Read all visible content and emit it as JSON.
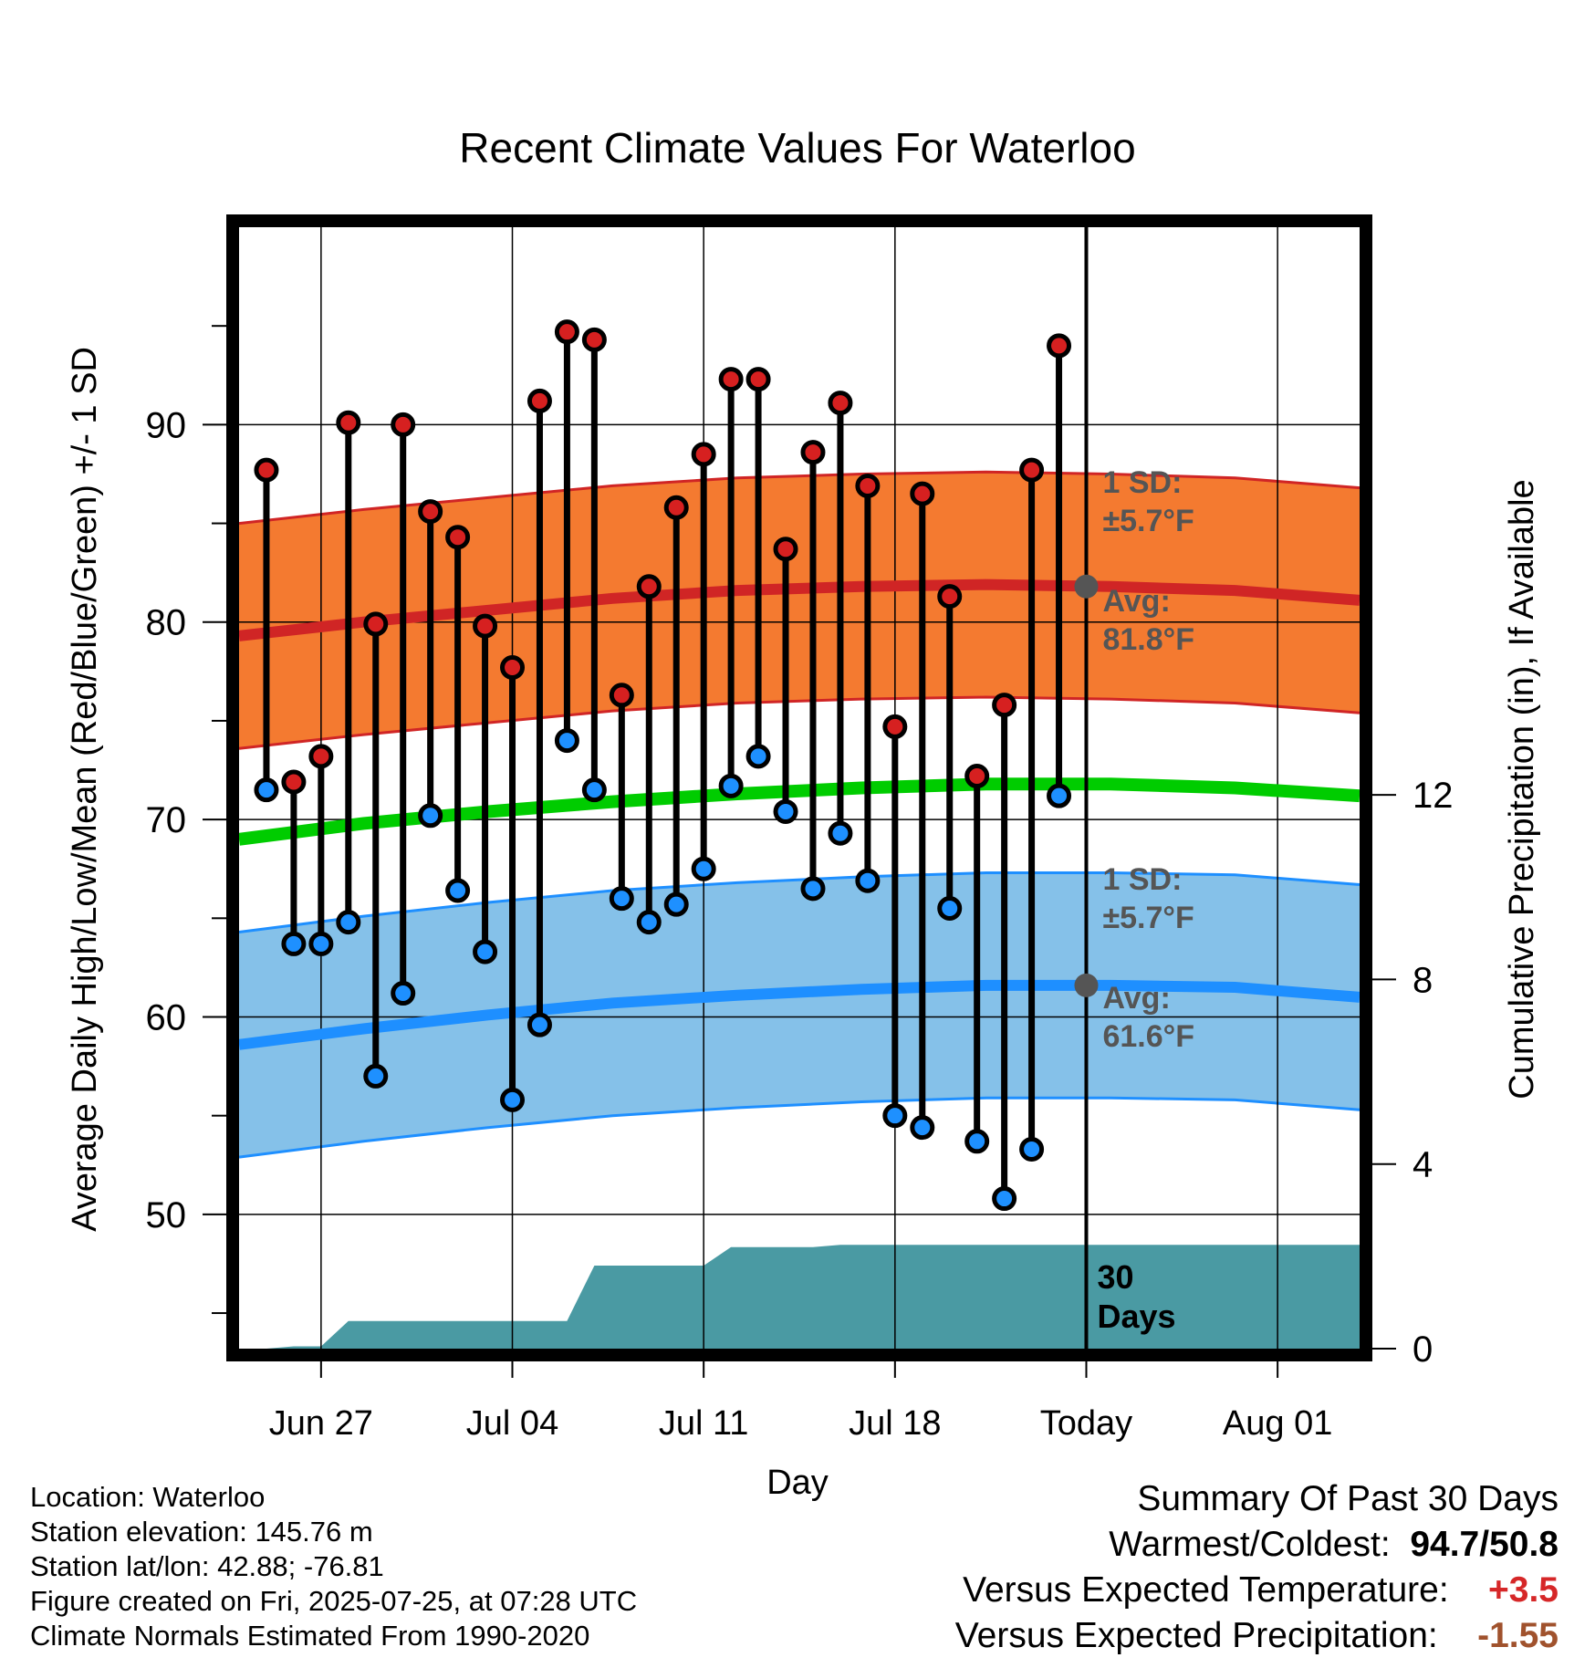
{
  "chart_data": {
    "type": "line",
    "title": "Recent Climate Values For Waterloo",
    "xlabel": "Day",
    "ylabel": "Average Daily High/Low/Mean (Red/Blue/Green) +/- 1 SD",
    "y2label": "Cumulative Precipitation (in), If Available",
    "x_ticks": [
      "Jun 27",
      "Jul 04",
      "Jul 11",
      "Jul 18",
      "Today",
      "Aug 01"
    ],
    "y_ticks": [
      50,
      60,
      70,
      80,
      90
    ],
    "y2_ticks": [
      0,
      4,
      8,
      12
    ],
    "ylim": [
      43.2,
      100
    ],
    "y2lim": [
      0,
      24.3
    ],
    "grid": true,
    "observed_high": [
      87.7,
      71.9,
      73.2,
      90.1,
      79.9,
      90.0,
      85.6,
      84.3,
      79.8,
      77.7,
      91.2,
      94.7,
      94.3,
      76.3,
      81.8,
      85.8,
      88.5,
      92.3,
      92.3,
      83.7,
      88.6,
      91.1,
      86.9,
      74.7,
      86.5,
      81.3,
      72.2,
      75.8,
      87.7,
      94.0
    ],
    "observed_low": [
      71.5,
      63.7,
      63.7,
      64.8,
      57.0,
      61.2,
      70.2,
      66.4,
      63.3,
      55.8,
      59.6,
      74.0,
      71.5,
      66.0,
      64.8,
      65.7,
      67.5,
      71.7,
      73.2,
      70.4,
      66.5,
      69.3,
      66.9,
      55.0,
      54.4,
      65.5,
      53.7,
      50.8,
      53.3,
      71.2
    ],
    "normal_high_avg": [
      79.3,
      80.0,
      80.6,
      81.2,
      81.6,
      81.8,
      81.9,
      81.8,
      81.6,
      81.1
    ],
    "normal_low_avg": [
      58.6,
      59.4,
      60.1,
      60.7,
      61.1,
      61.4,
      61.6,
      61.6,
      61.5,
      61.0
    ],
    "normal_mean": [
      69.0,
      69.8,
      70.4,
      70.9,
      71.3,
      71.6,
      71.8,
      71.8,
      71.6,
      71.2
    ],
    "sd": 5.7,
    "cumulative_precip": [
      0.0,
      0.0,
      0.05,
      0.05,
      0.6,
      0.6,
      0.6,
      0.6,
      0.6,
      0.6,
      0.6,
      0.6,
      0.6,
      1.8,
      1.8,
      1.8,
      1.8,
      1.8,
      2.2,
      2.2,
      2.2,
      2.2,
      2.25,
      2.25,
      2.25,
      2.25,
      2.25,
      2.25,
      2.25,
      2.25,
      2.25,
      2.25
    ],
    "annotations": {
      "high_sd_label": "1 SD:",
      "high_sd_value": "±5.7°F",
      "high_avg_label": "Avg:",
      "high_avg_value": "81.8°F",
      "low_sd_label": "1 SD:",
      "low_sd_value": "±5.7°F",
      "low_avg_label": "Avg:",
      "low_avg_value": "61.6°F",
      "period_label_1": "30",
      "period_label_2": "Days"
    },
    "colors": {
      "high_band": "#f47a30",
      "high_line": "#d02525",
      "low_band": "#85c1e9",
      "low_line": "#1e8fff",
      "mean_line": "#00cc00",
      "precip": "#4a9aa3",
      "high_point": "#d62020",
      "low_point": "#1e90ff",
      "annotation_text": "#555555"
    }
  },
  "info": {
    "location": "Location: Waterloo",
    "elevation": "Station elevation: 145.76 m",
    "latlon": "Station lat/lon: 42.88; -76.81",
    "created": "Figure created on Fri, 2025-07-25, at 07:28 UTC",
    "normals": "Climate Normals Estimated From 1990-2020"
  },
  "summary": {
    "title": "Summary Of Past 30 Days",
    "warmest_label": "Warmest/Coldest:",
    "warmest_value": "94.7/50.8",
    "temp_label": "Versus Expected Temperature:",
    "temp_value": "+3.5",
    "precip_label": "Versus Expected Precipitation:",
    "precip_value": "-1.55"
  }
}
